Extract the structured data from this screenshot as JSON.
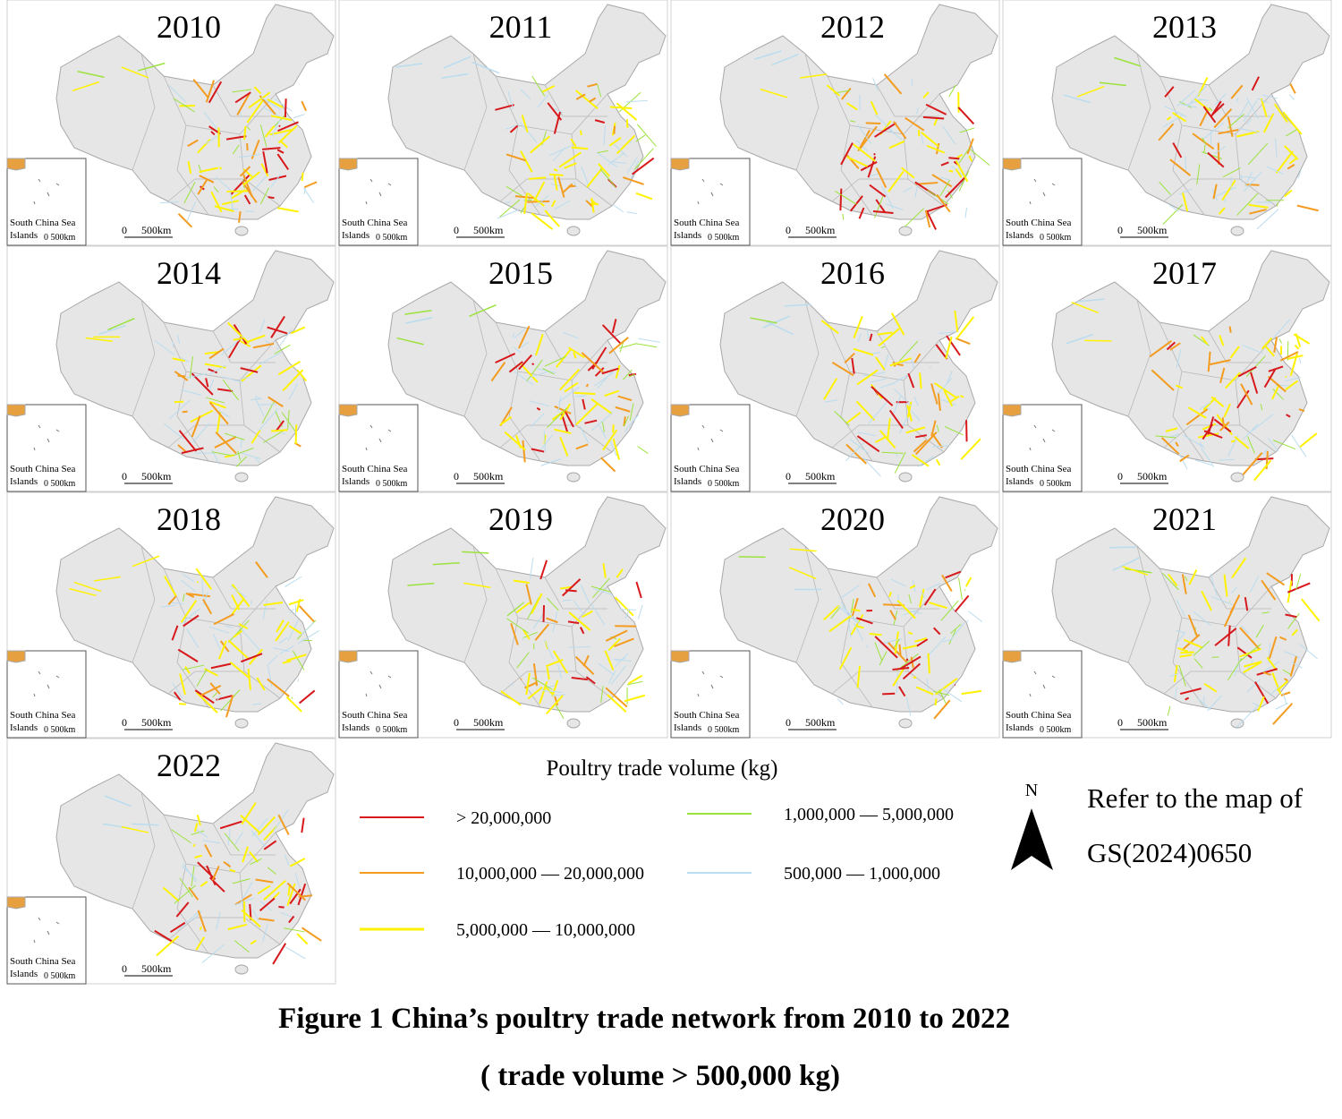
{
  "panels": [
    {
      "year": "2010"
    },
    {
      "year": "2011"
    },
    {
      "year": "2012"
    },
    {
      "year": "2013"
    },
    {
      "year": "2014"
    },
    {
      "year": "2015"
    },
    {
      "year": "2016"
    },
    {
      "year": "2017"
    },
    {
      "year": "2018"
    },
    {
      "year": "2019"
    },
    {
      "year": "2020"
    },
    {
      "year": "2021"
    },
    {
      "year": "2022"
    }
  ],
  "inset": {
    "label_lines": [
      "South China Sea",
      "Islands"
    ],
    "scale": "0 500km"
  },
  "scale": {
    "zero": "0",
    "label": "500km"
  },
  "legend": {
    "title": "Poultry trade volume (kg)",
    "items": [
      {
        "label": "> 20,000,000",
        "color": "#d7191c"
      },
      {
        "label": "10,000,000 — 20,000,000",
        "color": "#f39c1f"
      },
      {
        "label": "5,000,000 — 10,000,000",
        "color": "#fff200"
      },
      {
        "label": "1,000,000 — 5,000,000",
        "color": "#9be23c"
      },
      {
        "label": "500,000 — 1,000,000",
        "color": "#b9dcef"
      }
    ]
  },
  "north": "N",
  "note_lines": [
    "Refer to the map of",
    "GS(2024)0650"
  ],
  "caption_lines": [
    "Figure 1 China’s poultry trade network from 2010 to 2022",
    "( trade volume  > 500,000 kg)"
  ]
}
